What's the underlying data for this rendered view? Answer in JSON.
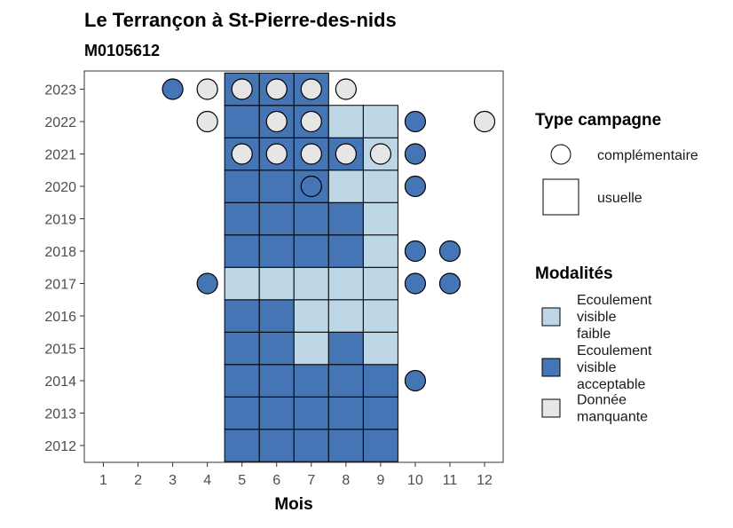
{
  "chart_data": {
    "type": "heatmap",
    "title": "Le Terrançon à St-Pierre-des-nids",
    "subtitle": "M0105612",
    "xlabel": "Mois",
    "ylabel": "",
    "x_ticks": [
      "1",
      "2",
      "3",
      "4",
      "5",
      "6",
      "7",
      "8",
      "9",
      "10",
      "11",
      "12"
    ],
    "y_ticks": [
      "2012",
      "2013",
      "2014",
      "2015",
      "2016",
      "2017",
      "2018",
      "2019",
      "2020",
      "2021",
      "2022",
      "2023"
    ],
    "legend_type": {
      "title": "Type campagne",
      "items": [
        {
          "label": "complémentaire",
          "shape": "circle"
        },
        {
          "label": "usuelle",
          "shape": "square"
        }
      ]
    },
    "legend_modalites": {
      "title": "Modalités",
      "items": [
        {
          "key": "faible",
          "lines": [
            "Ecoulement",
            "visible",
            "faible"
          ],
          "color": "#bdd7e7"
        },
        {
          "key": "acceptable",
          "lines": [
            "Ecoulement",
            "visible",
            "acceptable"
          ],
          "color": "#4575b4"
        },
        {
          "key": "manquante",
          "lines": [
            "Donnée",
            "manquante"
          ],
          "color": "#e6e6e6"
        }
      ]
    },
    "colors": {
      "faible": "#bdd7e7",
      "acceptable": "#4575b4",
      "manquante": "#e6e6e6"
    },
    "usuelle": [
      {
        "year": 2012,
        "month": 5,
        "mod": "acceptable"
      },
      {
        "year": 2012,
        "month": 6,
        "mod": "acceptable"
      },
      {
        "year": 2012,
        "month": 7,
        "mod": "acceptable"
      },
      {
        "year": 2012,
        "month": 8,
        "mod": "acceptable"
      },
      {
        "year": 2012,
        "month": 9,
        "mod": "acceptable"
      },
      {
        "year": 2013,
        "month": 5,
        "mod": "acceptable"
      },
      {
        "year": 2013,
        "month": 6,
        "mod": "acceptable"
      },
      {
        "year": 2013,
        "month": 7,
        "mod": "acceptable"
      },
      {
        "year": 2013,
        "month": 8,
        "mod": "acceptable"
      },
      {
        "year": 2013,
        "month": 9,
        "mod": "acceptable"
      },
      {
        "year": 2014,
        "month": 5,
        "mod": "acceptable"
      },
      {
        "year": 2014,
        "month": 6,
        "mod": "acceptable"
      },
      {
        "year": 2014,
        "month": 7,
        "mod": "acceptable"
      },
      {
        "year": 2014,
        "month": 8,
        "mod": "acceptable"
      },
      {
        "year": 2014,
        "month": 9,
        "mod": "acceptable"
      },
      {
        "year": 2015,
        "month": 5,
        "mod": "acceptable"
      },
      {
        "year": 2015,
        "month": 6,
        "mod": "acceptable"
      },
      {
        "year": 2015,
        "month": 7,
        "mod": "faible"
      },
      {
        "year": 2015,
        "month": 8,
        "mod": "acceptable"
      },
      {
        "year": 2015,
        "month": 9,
        "mod": "faible"
      },
      {
        "year": 2016,
        "month": 5,
        "mod": "acceptable"
      },
      {
        "year": 2016,
        "month": 6,
        "mod": "acceptable"
      },
      {
        "year": 2016,
        "month": 7,
        "mod": "faible"
      },
      {
        "year": 2016,
        "month": 8,
        "mod": "faible"
      },
      {
        "year": 2016,
        "month": 9,
        "mod": "faible"
      },
      {
        "year": 2017,
        "month": 5,
        "mod": "faible"
      },
      {
        "year": 2017,
        "month": 6,
        "mod": "faible"
      },
      {
        "year": 2017,
        "month": 7,
        "mod": "faible"
      },
      {
        "year": 2017,
        "month": 8,
        "mod": "faible"
      },
      {
        "year": 2017,
        "month": 9,
        "mod": "faible"
      },
      {
        "year": 2018,
        "month": 5,
        "mod": "acceptable"
      },
      {
        "year": 2018,
        "month": 6,
        "mod": "acceptable"
      },
      {
        "year": 2018,
        "month": 7,
        "mod": "acceptable"
      },
      {
        "year": 2018,
        "month": 8,
        "mod": "acceptable"
      },
      {
        "year": 2018,
        "month": 9,
        "mod": "faible"
      },
      {
        "year": 2019,
        "month": 5,
        "mod": "acceptable"
      },
      {
        "year": 2019,
        "month": 6,
        "mod": "acceptable"
      },
      {
        "year": 2019,
        "month": 7,
        "mod": "acceptable"
      },
      {
        "year": 2019,
        "month": 8,
        "mod": "acceptable"
      },
      {
        "year": 2019,
        "month": 9,
        "mod": "faible"
      },
      {
        "year": 2020,
        "month": 5,
        "mod": "acceptable"
      },
      {
        "year": 2020,
        "month": 6,
        "mod": "acceptable"
      },
      {
        "year": 2020,
        "month": 7,
        "mod": "acceptable"
      },
      {
        "year": 2020,
        "month": 8,
        "mod": "faible"
      },
      {
        "year": 2020,
        "month": 9,
        "mod": "faible"
      },
      {
        "year": 2021,
        "month": 5,
        "mod": "acceptable"
      },
      {
        "year": 2021,
        "month": 6,
        "mod": "acceptable"
      },
      {
        "year": 2021,
        "month": 7,
        "mod": "acceptable"
      },
      {
        "year": 2021,
        "month": 8,
        "mod": "acceptable"
      },
      {
        "year": 2021,
        "month": 9,
        "mod": "faible"
      },
      {
        "year": 2022,
        "month": 5,
        "mod": "acceptable"
      },
      {
        "year": 2022,
        "month": 6,
        "mod": "acceptable"
      },
      {
        "year": 2022,
        "month": 7,
        "mod": "acceptable"
      },
      {
        "year": 2022,
        "month": 8,
        "mod": "faible"
      },
      {
        "year": 2022,
        "month": 9,
        "mod": "faible"
      },
      {
        "year": 2023,
        "month": 5,
        "mod": "acceptable"
      },
      {
        "year": 2023,
        "month": 6,
        "mod": "acceptable"
      },
      {
        "year": 2023,
        "month": 7,
        "mod": "acceptable"
      }
    ],
    "complementaire": [
      {
        "year": 2014,
        "month": 10,
        "mod": "acceptable"
      },
      {
        "year": 2017,
        "month": 4,
        "mod": "acceptable"
      },
      {
        "year": 2017,
        "month": 10,
        "mod": "acceptable"
      },
      {
        "year": 2017,
        "month": 11,
        "mod": "acceptable"
      },
      {
        "year": 2018,
        "month": 10,
        "mod": "acceptable"
      },
      {
        "year": 2018,
        "month": 11,
        "mod": "acceptable"
      },
      {
        "year": 2020,
        "month": 7,
        "mod": "acceptable"
      },
      {
        "year": 2020,
        "month": 10,
        "mod": "acceptable"
      },
      {
        "year": 2021,
        "month": 5,
        "mod": "manquante"
      },
      {
        "year": 2021,
        "month": 6,
        "mod": "manquante"
      },
      {
        "year": 2021,
        "month": 7,
        "mod": "manquante"
      },
      {
        "year": 2021,
        "month": 8,
        "mod": "manquante"
      },
      {
        "year": 2021,
        "month": 9,
        "mod": "manquante"
      },
      {
        "year": 2021,
        "month": 10,
        "mod": "acceptable"
      },
      {
        "year": 2022,
        "month": 4,
        "mod": "manquante"
      },
      {
        "year": 2022,
        "month": 6,
        "mod": "manquante"
      },
      {
        "year": 2022,
        "month": 7,
        "mod": "manquante"
      },
      {
        "year": 2022,
        "month": 10,
        "mod": "acceptable"
      },
      {
        "year": 2022,
        "month": 12,
        "mod": "manquante"
      },
      {
        "year": 2023,
        "month": 3,
        "mod": "acceptable"
      },
      {
        "year": 2023,
        "month": 4,
        "mod": "manquante"
      },
      {
        "year": 2023,
        "month": 5,
        "mod": "manquante"
      },
      {
        "year": 2023,
        "month": 6,
        "mod": "manquante"
      },
      {
        "year": 2023,
        "month": 7,
        "mod": "manquante"
      },
      {
        "year": 2023,
        "month": 8,
        "mod": "manquante"
      }
    ]
  }
}
